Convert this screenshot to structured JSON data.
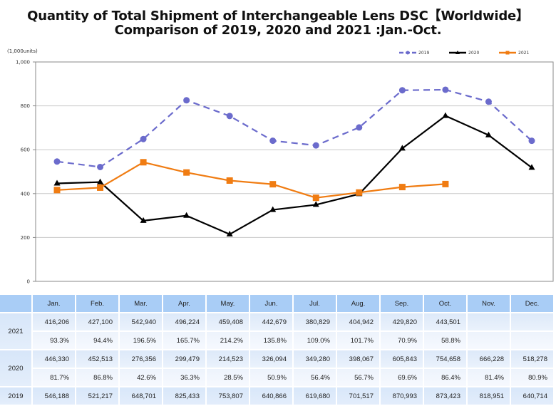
{
  "title_line1": "Quantity of Total Shipment of Interchangeable Lens DSC【Worldwide】",
  "title_line2": "Comparison of 2019, 2020 and 2021 :Jan.-Oct.",
  "chart_data": {
    "type": "line",
    "title": "Quantity of Total Shipment of Interchangeable Lens DSC【Worldwide】 Comparison of 2019, 2020 and 2021 :Jan.-Oct.",
    "ylabel": "(1,000units)",
    "xlabel": "",
    "ylim": [
      0,
      1000
    ],
    "yticks": [
      0,
      200,
      400,
      600,
      800,
      1000
    ],
    "ytick_labels": [
      "0",
      "200",
      "400",
      "600",
      "800",
      "1,000"
    ],
    "grid": true,
    "legend_position": "top-right",
    "categories": [
      "Jan.",
      "Feb.",
      "Mar.",
      "Apr.",
      "May.",
      "Jun.",
      "Jul.",
      "Aug.",
      "Sep.",
      "Oct.",
      "Nov.",
      "Dec."
    ],
    "series": [
      {
        "name": "2019",
        "color": "#6b6bcc",
        "style": "dashed",
        "marker": "circle",
        "values": [
          546.188,
          521.217,
          648.701,
          825.433,
          753.807,
          640.866,
          619.68,
          701.517,
          870.993,
          873.423,
          818.951,
          640.714
        ]
      },
      {
        "name": "2020",
        "color": "#000000",
        "style": "solid",
        "marker": "triangle",
        "values": [
          446.33,
          452.513,
          276.356,
          299.479,
          214.523,
          326.094,
          349.28,
          398.067,
          605.843,
          754.658,
          666.228,
          518.278
        ]
      },
      {
        "name": "2021",
        "color": "#f07c12",
        "style": "solid",
        "marker": "square",
        "values": [
          416.206,
          427.1,
          542.94,
          496.224,
          459.408,
          442.679,
          380.829,
          404.942,
          429.82,
          443.501,
          null,
          null
        ]
      }
    ]
  },
  "table": {
    "months": [
      "Jan.",
      "Feb.",
      "Mar.",
      "Apr.",
      "May.",
      "Jun.",
      "Jul.",
      "Aug.",
      "Sep.",
      "Oct.",
      "Nov.",
      "Dec."
    ],
    "rows": [
      {
        "year": "2021",
        "values": [
          "416,206",
          "427,100",
          "542,940",
          "496,224",
          "459,408",
          "442,679",
          "380,829",
          "404,942",
          "429,820",
          "443,501",
          "",
          ""
        ],
        "ratios": [
          "93.3%",
          "94.4%",
          "196.5%",
          "165.7%",
          "214.2%",
          "135.8%",
          "109.0%",
          "101.7%",
          "70.9%",
          "58.8%",
          "",
          ""
        ]
      },
      {
        "year": "2020",
        "values": [
          "446,330",
          "452,513",
          "276,356",
          "299,479",
          "214,523",
          "326,094",
          "349,280",
          "398,067",
          "605,843",
          "754,658",
          "666,228",
          "518,278"
        ],
        "ratios": [
          "81.7%",
          "86.8%",
          "42.6%",
          "36.3%",
          "28.5%",
          "50.9%",
          "56.4%",
          "56.7%",
          "69.6%",
          "86.4%",
          "81.4%",
          "80.9%"
        ]
      },
      {
        "year": "2019",
        "values": [
          "546,188",
          "521,217",
          "648,701",
          "825,433",
          "753,807",
          "640,866",
          "619,680",
          "701,517",
          "870,993",
          "873,423",
          "818,951",
          "640,714"
        ]
      }
    ]
  }
}
